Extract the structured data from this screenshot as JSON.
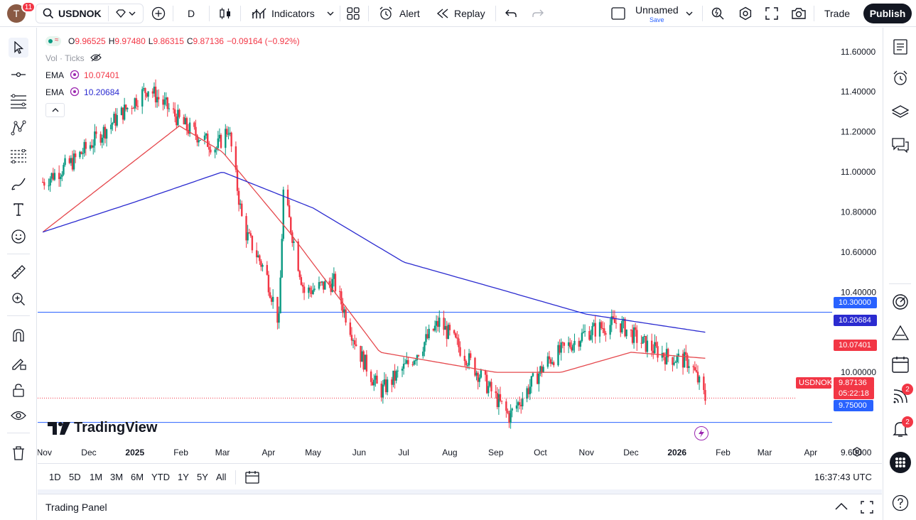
{
  "user": {
    "avatar_letter": "T",
    "notifications": "11"
  },
  "toolbar": {
    "symbol": "USDNOK",
    "interval": "D",
    "indicators_label": "Indicators",
    "alert_label": "Alert",
    "replay_label": "Replay",
    "layout_name": "Unnamed",
    "layout_save": "Save",
    "trade_label": "Trade",
    "publish_label": "Publish"
  },
  "legend": {
    "ohlc": {
      "o_label": "O",
      "o": "9.96525",
      "h_label": "H",
      "h": "9.97480",
      "l_label": "L",
      "l": "9.86315",
      "c_label": "C",
      "c": "9.87136",
      "change": "−0.09164 (−0.92%)"
    },
    "vol_label": "Vol · Ticks",
    "ema_fast": {
      "name": "EMA",
      "value": "10.07401",
      "color": "#f23645"
    },
    "ema_slow": {
      "name": "EMA",
      "value": "10.20684",
      "color": "#2b2bd0"
    }
  },
  "price_axis": {
    "ticks": [
      "11.60000",
      "11.40000",
      "11.20000",
      "11.00000",
      "10.80000",
      "10.60000",
      "10.40000",
      "10.00000",
      "9.60000"
    ],
    "level_upper": "10.30000",
    "ema_slow_tag": "10.20684",
    "ema_fast_tag": "10.07401",
    "symbol_tag": "USDNOK",
    "last_price": "9.87136",
    "countdown": "05:22:18",
    "level_lower": "9.75000"
  },
  "time_axis": {
    "labels": [
      "Nov",
      "Dec",
      "2025",
      "Feb",
      "Mar",
      "Apr",
      "May",
      "Jun",
      "Jul",
      "Aug",
      "Sep",
      "Oct",
      "Nov",
      "Dec",
      "2026",
      "Feb",
      "Mar",
      "Apr"
    ]
  },
  "watermark": "TradingView",
  "ranges": [
    "1D",
    "5D",
    "1M",
    "3M",
    "6M",
    "YTD",
    "1Y",
    "5Y",
    "All"
  ],
  "clock": "16:37:43 UTC",
  "trading_panel_label": "Trading Panel",
  "right_badges": {
    "feed": "2",
    "notifications": "2"
  },
  "colors": {
    "up": "#089981",
    "down": "#f23645",
    "ema_fast": "#e5484d",
    "ema_slow": "#2b2bd0",
    "level": "#2962ff"
  },
  "chart_data": {
    "type": "candlestick",
    "symbol": "USDNOK",
    "interval": "D",
    "ylim": [
      9.55,
      11.72
    ],
    "horizontal_levels": [
      10.3,
      9.75
    ],
    "anchor_points": [
      {
        "date": "2024-10-31",
        "close": 10.95
      },
      {
        "date": "2024-11-20",
        "close": 11.05
      },
      {
        "date": "2024-12-31",
        "close": 11.35
      },
      {
        "date": "2025-01-10",
        "close": 11.42
      },
      {
        "date": "2025-02-05",
        "close": 11.22
      },
      {
        "date": "2025-02-25",
        "close": 11.12
      },
      {
        "date": "2025-03-05",
        "close": 11.22
      },
      {
        "date": "2025-03-15",
        "close": 10.72
      },
      {
        "date": "2025-03-30",
        "close": 10.5
      },
      {
        "date": "2025-04-08",
        "close": 10.25
      },
      {
        "date": "2025-04-11",
        "close": 10.9
      },
      {
        "date": "2025-04-25",
        "close": 10.4
      },
      {
        "date": "2025-05-15",
        "close": 10.45
      },
      {
        "date": "2025-06-01",
        "close": 10.1
      },
      {
        "date": "2025-06-15",
        "close": 9.9
      },
      {
        "date": "2025-07-05",
        "close": 10.05
      },
      {
        "date": "2025-07-25",
        "close": 10.25
      },
      {
        "date": "2025-08-10",
        "close": 10.1
      },
      {
        "date": "2025-09-10",
        "close": 9.78
      },
      {
        "date": "2025-10-05",
        "close": 10.05
      },
      {
        "date": "2025-11-01",
        "close": 10.2
      },
      {
        "date": "2025-11-22",
        "close": 10.25
      },
      {
        "date": "2025-12-08",
        "close": 10.15
      },
      {
        "date": "2025-12-25",
        "close": 10.08
      },
      {
        "date": "2026-01-10",
        "close": 10.05
      },
      {
        "date": "2026-01-20",
        "close": 9.87
      }
    ],
    "ema_fast_anchor": [
      {
        "date": "2024-10-31",
        "value": 10.7
      },
      {
        "date": "2025-01-31",
        "value": 11.23
      },
      {
        "date": "2025-03-01",
        "value": 11.1
      },
      {
        "date": "2025-04-15",
        "value": 10.7
      },
      {
        "date": "2025-06-15",
        "value": 10.1
      },
      {
        "date": "2025-09-01",
        "value": 10.0
      },
      {
        "date": "2025-10-15",
        "value": 10.0
      },
      {
        "date": "2025-12-01",
        "value": 10.1
      },
      {
        "date": "2026-01-20",
        "value": 10.07
      }
    ],
    "ema_slow_anchor": [
      {
        "date": "2024-10-31",
        "value": 10.7
      },
      {
        "date": "2025-01-01",
        "value": 10.85
      },
      {
        "date": "2025-03-01",
        "value": 11.0
      },
      {
        "date": "2025-05-01",
        "value": 10.82
      },
      {
        "date": "2025-07-01",
        "value": 10.55
      },
      {
        "date": "2025-09-01",
        "value": 10.42
      },
      {
        "date": "2025-11-01",
        "value": 10.29
      },
      {
        "date": "2026-01-20",
        "value": 10.2
      }
    ]
  }
}
